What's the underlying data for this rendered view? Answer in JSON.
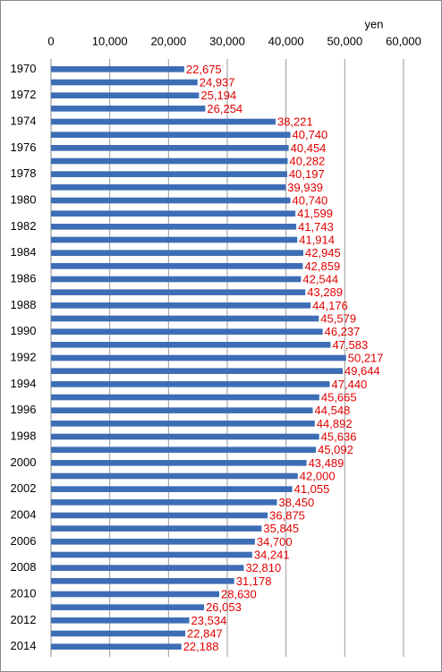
{
  "chart_data": {
    "type": "bar",
    "orientation": "horizontal",
    "x_axis_label": "yen",
    "categories": [
      "1970",
      null,
      "1972",
      null,
      "1974",
      null,
      "1976",
      null,
      "1978",
      null,
      "1980",
      null,
      "1982",
      null,
      "1984",
      null,
      "1986",
      null,
      "1988",
      null,
      "1990",
      null,
      "1992",
      null,
      "1994",
      null,
      "1996",
      null,
      "1998",
      null,
      "2000",
      null,
      "2002",
      null,
      "2004",
      null,
      "2006",
      null,
      "2008",
      null,
      "2010",
      null,
      "2012",
      null,
      "2014"
    ],
    "values": [
      22675,
      24937,
      25194,
      26254,
      38221,
      40740,
      40454,
      40282,
      40197,
      39939,
      40740,
      41599,
      41743,
      41914,
      42945,
      42859,
      42544,
      43289,
      44176,
      45579,
      46237,
      47583,
      50217,
      49644,
      47440,
      45665,
      44548,
      44892,
      45636,
      45092,
      43489,
      42000,
      41055,
      38450,
      36875,
      35845,
      34700,
      34241,
      32810,
      31178,
      28630,
      26053,
      23534,
      22847,
      22188
    ],
    "value_labels": [
      "22,675",
      "24,937",
      "25,194",
      "26,254",
      "38,221",
      "40,740",
      "40,454",
      "40,282",
      "40,197",
      "39,939",
      "40,740",
      "41,599",
      "41,743",
      "41,914",
      "42,945",
      "42,859",
      "42,544",
      "43,289",
      "44,176",
      "45,579",
      "46,237",
      "47,583",
      "50,217",
      "49,644",
      "47,440",
      "45,665",
      "44,548",
      "44,892",
      "45,636",
      "45,092",
      "43,489",
      "42,000",
      "41,055",
      "38,450",
      "36,875",
      "35,845",
      "34,700",
      "34,241",
      "32,810",
      "31,178",
      "28,630",
      "26,053",
      "23,534",
      "22,847",
      "22,188"
    ],
    "color": "#3d6db5",
    "label_color": "#e00000",
    "xlim": [
      0,
      60000
    ],
    "xticks": [
      0,
      {
        "value": 10000,
        "label": "10,000"
      },
      {
        "value": 20000,
        "label": "20,000"
      },
      {
        "value": 30000,
        "label": "30,000"
      },
      {
        "value": 40000,
        "label": "40,000"
      },
      {
        "value": 50000,
        "label": "50,000"
      },
      {
        "value": 60000,
        "label": "60,000"
      }
    ],
    "grid": true
  }
}
